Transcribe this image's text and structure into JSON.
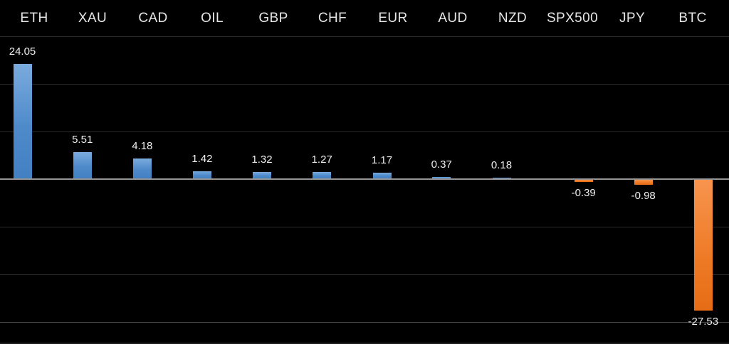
{
  "chart_data": {
    "type": "bar",
    "categories": [
      "ETH",
      "XAU",
      "CAD",
      "OIL",
      "GBP",
      "CHF",
      "EUR",
      "AUD",
      "NZD",
      "SPX500",
      "JPY",
      "BTC"
    ],
    "values": [
      24.05,
      5.51,
      4.18,
      1.42,
      1.32,
      1.27,
      1.17,
      0.37,
      0.18,
      -0.39,
      -0.98,
      -27.53
    ],
    "value_labels": [
      "24.05",
      "5.51",
      "4.18",
      "1.42",
      "1.32",
      "1.27",
      "1.17",
      "0.37",
      "0.18",
      "-0.39",
      "-0.98",
      "-27.53"
    ],
    "title": "",
    "xlabel": "",
    "ylabel": "",
    "ylim": [
      -30,
      30
    ],
    "gridline_interval": 10,
    "grid": true,
    "legend_position": "none",
    "axis_tick_labels_visible": false,
    "colors": {
      "background": "#000000",
      "positive_bar_top": "#7babdd",
      "positive_bar_bottom": "#4380c2",
      "negative_bar_top": "#f7944e",
      "negative_bar_bottom": "#e66d15",
      "gridline": "#2b2b2b",
      "zero_line": "#969696",
      "category_text": "#e6e6e6",
      "value_text": "#efefef"
    }
  }
}
